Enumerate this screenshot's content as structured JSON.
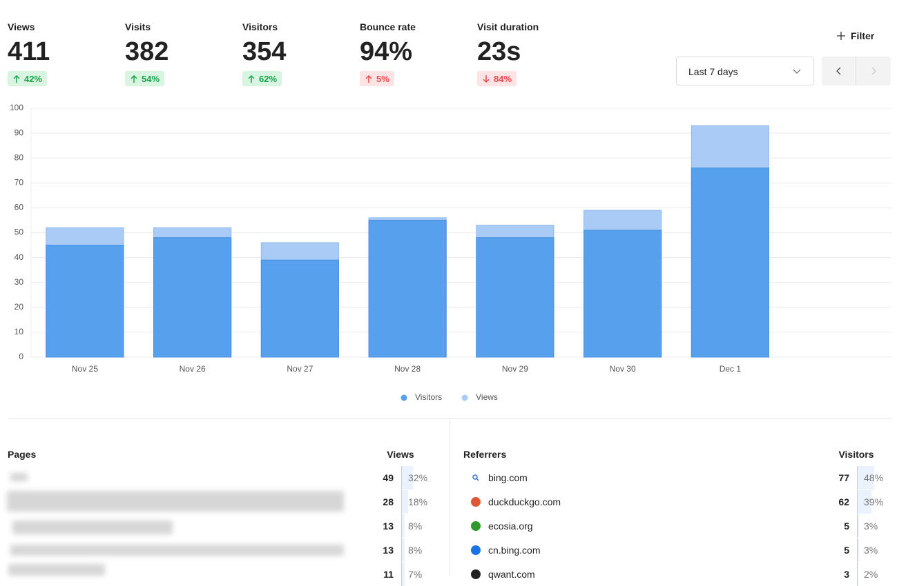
{
  "metrics": [
    {
      "label": "Views",
      "value": "411",
      "change": "42%",
      "direction": "up",
      "badge_color": "#15a34a",
      "badge_bg": "#d8f5e1"
    },
    {
      "label": "Visits",
      "value": "382",
      "change": "54%",
      "direction": "up",
      "badge_color": "#15a34a",
      "badge_bg": "#d8f5e1"
    },
    {
      "label": "Visitors",
      "value": "354",
      "change": "62%",
      "direction": "up",
      "badge_color": "#15a34a",
      "badge_bg": "#d8f5e1"
    },
    {
      "label": "Bounce rate",
      "value": "94%",
      "change": "5%",
      "direction": "up",
      "badge_color": "#e5484d",
      "badge_bg": "#fde3e3"
    },
    {
      "label": "Visit duration",
      "value": "23s",
      "change": "84%",
      "direction": "down",
      "badge_color": "#e5484d",
      "badge_bg": "#fde3e3"
    }
  ],
  "controls": {
    "filter": "Filter",
    "date_range": "Last 7 days"
  },
  "chart_data": {
    "type": "bar",
    "categories": [
      "Nov 25",
      "Nov 26",
      "Nov 27",
      "Nov 28",
      "Nov 29",
      "Nov 30",
      "Dec 1",
      null
    ],
    "series": [
      {
        "name": "Views",
        "color": "#a9cbf6",
        "values": [
          52,
          52,
          46,
          56,
          53,
          59,
          93,
          null
        ]
      },
      {
        "name": "Visitors",
        "color": "#57a0ee",
        "values": [
          45,
          48,
          39,
          55,
          48,
          51,
          76,
          null
        ]
      }
    ],
    "legend_order": [
      "Visitors",
      "Views"
    ],
    "ylim": [
      0,
      100
    ],
    "yticks": [
      0,
      10,
      20,
      30,
      40,
      50,
      60,
      70,
      80,
      90,
      100
    ],
    "grid": true
  },
  "pages": {
    "title": "Pages",
    "metric": "Views",
    "rows": [
      {
        "count": "49",
        "percent": "32%"
      },
      {
        "count": "28",
        "percent": "18%"
      },
      {
        "count": "13",
        "percent": "8%"
      },
      {
        "count": "13",
        "percent": "8%"
      },
      {
        "count": "11",
        "percent": "7%"
      }
    ]
  },
  "referrers": {
    "title": "Referrers",
    "metric": "Visitors",
    "rows": [
      {
        "name": "bing.com",
        "count": "77",
        "percent": "48%"
      },
      {
        "name": "duckduckgo.com",
        "count": "62",
        "percent": "39%"
      },
      {
        "name": "ecosia.org",
        "count": "5",
        "percent": "3%"
      },
      {
        "name": "cn.bing.com",
        "count": "5",
        "percent": "3%"
      },
      {
        "name": "qwant.com",
        "count": "3",
        "percent": "2%"
      }
    ]
  }
}
